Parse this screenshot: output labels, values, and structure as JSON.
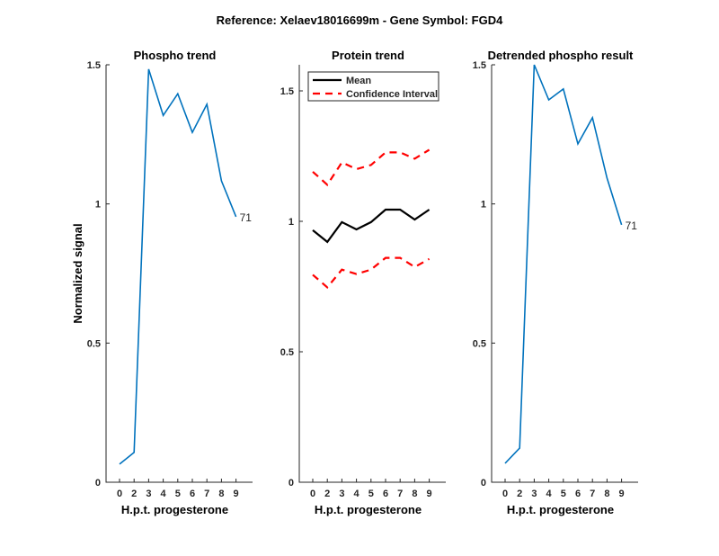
{
  "figure_title": "Reference:  Xelaev18016699m - Gene Symbol:  FGD4",
  "chart_data": [
    {
      "type": "line",
      "title": "Phospho trend",
      "xlabel": "H.p.t. progesterone",
      "ylabel": "Normalized signal",
      "categories": [
        "0",
        "2",
        "3",
        "4",
        "5",
        "6",
        "7",
        "8",
        "9"
      ],
      "ylim": [
        0,
        1.5
      ],
      "yticks": [
        "0",
        "0.5",
        "1",
        "1.5"
      ],
      "series": [
        {
          "name": "Phospho",
          "color": "#0072BD",
          "style": "solid",
          "values": [
            0.065,
            0.107,
            1.484,
            1.318,
            1.396,
            1.257,
            1.358,
            1.083,
            0.954
          ]
        }
      ],
      "annotation": "71"
    },
    {
      "type": "line",
      "title": "Protein trend",
      "xlabel": "H.p.t. progesterone",
      "ylabel": "",
      "categories": [
        "0",
        "2",
        "3",
        "4",
        "5",
        "6",
        "7",
        "8",
        "9"
      ],
      "ylim": [
        0,
        1.6
      ],
      "yticks": [
        "0",
        "0.5",
        "1",
        "1.5"
      ],
      "legend": {
        "placement": "top-left",
        "entries": [
          "Mean",
          "Confidence Interval"
        ]
      },
      "series": [
        {
          "name": "Mean",
          "color": "#000000",
          "style": "solid",
          "values": [
            0.966,
            0.921,
            0.997,
            0.969,
            0.997,
            1.045,
            1.045,
            1.007,
            1.045
          ]
        },
        {
          "name": "Confidence Interval upper",
          "color": "#FF0000",
          "style": "dashed",
          "values": [
            1.19,
            1.14,
            1.226,
            1.2,
            1.216,
            1.264,
            1.264,
            1.24,
            1.274
          ]
        },
        {
          "name": "Confidence Interval lower",
          "color": "#FF0000",
          "style": "dashed",
          "values": [
            0.795,
            0.747,
            0.815,
            0.798,
            0.815,
            0.86,
            0.86,
            0.825,
            0.856
          ]
        }
      ]
    },
    {
      "type": "line",
      "title": "Detrended phospho result",
      "xlabel": "H.p.t. progesterone",
      "ylabel": "",
      "categories": [
        "0",
        "2",
        "3",
        "4",
        "5",
        "6",
        "7",
        "8",
        "9"
      ],
      "ylim": [
        0,
        1.5
      ],
      "yticks": [
        "0",
        "0.5",
        "1",
        "1.5"
      ],
      "series": [
        {
          "name": "Detrended",
          "color": "#0072BD",
          "style": "solid",
          "values": [
            0.068,
            0.123,
            1.5,
            1.374,
            1.413,
            1.216,
            1.31,
            1.093,
            0.925
          ]
        }
      ],
      "annotation": "71"
    }
  ]
}
